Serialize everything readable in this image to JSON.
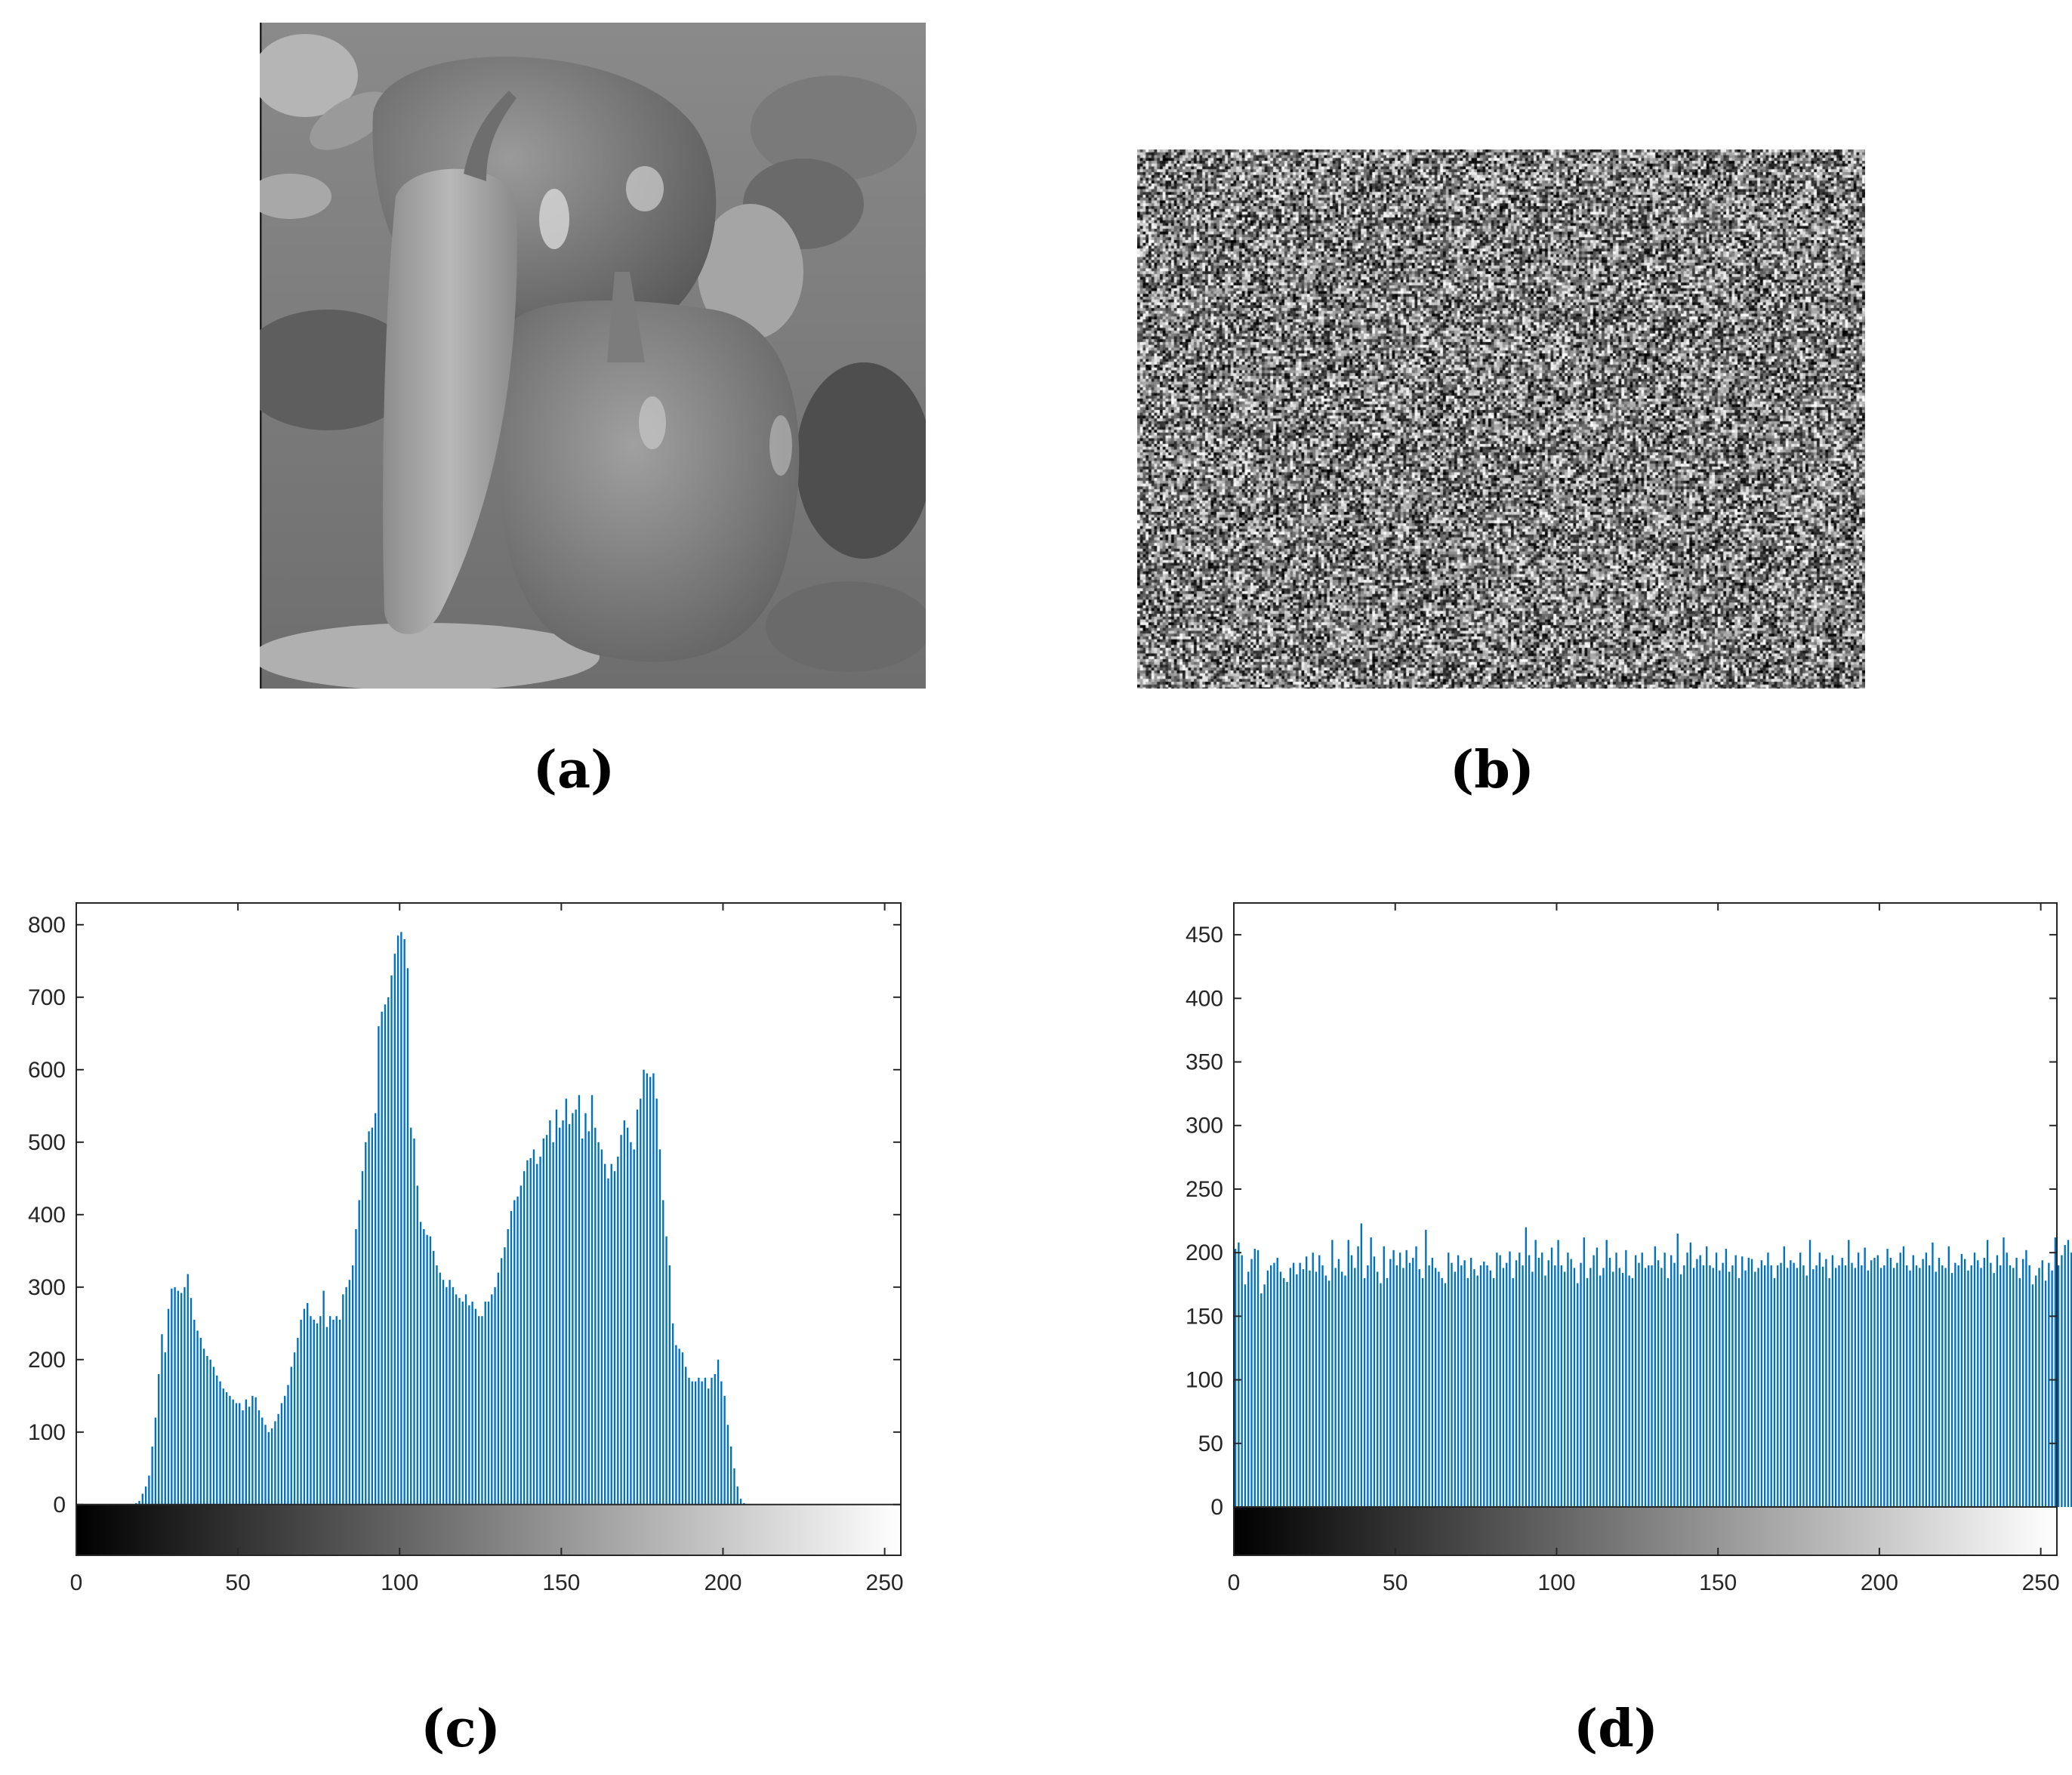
{
  "captions": {
    "a": "(a)",
    "b": "(b)",
    "c": "(c)",
    "d": "(d)"
  },
  "images": {
    "a": {
      "description_name": "peppers-grayscale-image"
    },
    "b": {
      "description_name": "encrypted-noise-image"
    }
  },
  "colors": {
    "bar": "#0072BD",
    "axis": "#262626",
    "background": "#ffffff"
  },
  "chart_data": [
    {
      "type": "bar",
      "panel": "c",
      "title": "",
      "xlabel": "",
      "ylabel": "",
      "xlim": [
        0,
        255
      ],
      "ylim": [
        -70,
        830
      ],
      "xticks": [
        0,
        50,
        100,
        150,
        200,
        250
      ],
      "yticks": [
        0,
        100,
        200,
        300,
        400,
        500,
        600,
        700,
        800
      ],
      "colorbar": "grayscale 0-255 gradient below axis",
      "grid": false,
      "x_start": 0,
      "values": [
        0,
        0,
        0,
        0,
        0,
        0,
        0,
        0,
        0,
        0,
        0,
        0,
        0,
        0,
        0,
        0,
        0,
        0,
        2,
        5,
        15,
        25,
        40,
        80,
        120,
        180,
        235,
        210,
        270,
        298,
        300,
        295,
        292,
        300,
        318,
        285,
        255,
        240,
        230,
        215,
        205,
        200,
        190,
        178,
        170,
        160,
        155,
        150,
        145,
        140,
        140,
        130,
        145,
        135,
        150,
        148,
        130,
        120,
        110,
        100,
        105,
        115,
        125,
        140,
        150,
        165,
        190,
        210,
        230,
        255,
        270,
        278,
        260,
        255,
        250,
        260,
        295,
        245,
        260,
        255,
        260,
        255,
        290,
        300,
        310,
        330,
        380,
        420,
        460,
        500,
        515,
        520,
        540,
        660,
        680,
        690,
        700,
        730,
        760,
        785,
        790,
        780,
        740,
        520,
        505,
        440,
        390,
        380,
        372,
        370,
        350,
        330,
        320,
        310,
        300,
        310,
        300,
        290,
        285,
        280,
        290,
        275,
        280,
        270,
        260,
        260,
        280,
        280,
        290,
        300,
        320,
        340,
        355,
        380,
        405,
        420,
        425,
        440,
        460,
        475,
        478,
        490,
        470,
        480,
        505,
        510,
        530,
        500,
        545,
        520,
        530,
        560,
        525,
        540,
        545,
        565,
        505,
        540,
        515,
        565,
        520,
        500,
        490,
        470,
        450,
        470,
        460,
        480,
        510,
        530,
        520,
        500,
        490,
        545,
        560,
        600,
        595,
        590,
        595,
        560,
        490,
        420,
        370,
        330,
        250,
        220,
        215,
        210,
        190,
        175,
        170,
        170,
        175,
        170,
        175,
        160,
        175,
        180,
        200,
        170,
        150,
        110,
        80,
        50,
        25,
        8,
        2,
        0,
        0,
        0,
        0,
        0,
        0,
        0,
        0,
        0,
        0,
        0,
        0,
        0,
        0,
        0,
        0,
        0,
        0,
        0,
        0,
        0,
        0,
        0,
        0,
        0,
        0,
        0,
        0,
        0,
        0,
        0,
        0,
        0,
        0,
        0,
        0,
        0,
        0,
        0,
        0,
        0,
        0,
        0,
        0,
        0,
        0,
        0,
        0,
        0,
        0
      ]
    },
    {
      "type": "bar",
      "panel": "d",
      "title": "",
      "xlabel": "",
      "ylabel": "",
      "xlim": [
        0,
        255
      ],
      "ylim": [
        -38,
        475
      ],
      "xticks": [
        0,
        50,
        100,
        150,
        200,
        250
      ],
      "yticks": [
        0,
        50,
        100,
        150,
        200,
        250,
        300,
        350,
        400,
        450
      ],
      "colorbar": "grayscale 0-255 gradient below axis",
      "grid": false,
      "x_start": 0,
      "values": [
        203,
        208,
        198,
        175,
        185,
        195,
        203,
        202,
        168,
        175,
        186,
        190,
        192,
        196,
        185,
        180,
        177,
        188,
        192,
        183,
        192,
        187,
        197,
        186,
        200,
        185,
        198,
        190,
        182,
        178,
        210,
        188,
        195,
        185,
        182,
        210,
        198,
        188,
        205,
        223,
        180,
        190,
        212,
        197,
        185,
        176,
        205,
        180,
        195,
        202,
        190,
        200,
        188,
        202,
        192,
        196,
        205,
        187,
        180,
        218,
        190,
        196,
        188,
        185,
        180,
        176,
        200,
        192,
        185,
        198,
        190,
        194,
        180,
        196,
        187,
        182,
        190,
        193,
        190,
        186,
        180,
        200,
        198,
        188,
        192,
        201,
        180,
        194,
        200,
        190,
        220,
        198,
        185,
        210,
        196,
        200,
        182,
        194,
        204,
        190,
        210,
        190,
        185,
        200,
        195,
        188,
        176,
        192,
        212,
        180,
        188,
        198,
        204,
        182,
        188,
        210,
        196,
        185,
        200,
        188,
        184,
        202,
        182,
        180,
        198,
        192,
        200,
        188,
        190,
        190,
        205,
        194,
        188,
        200,
        180,
        198,
        192,
        215,
        183,
        190,
        200,
        208,
        188,
        195,
        198,
        190,
        205,
        190,
        188,
        200,
        186,
        192,
        203,
        185,
        190,
        198,
        180,
        197,
        186,
        196,
        195,
        185,
        188,
        194,
        190,
        200,
        190,
        180,
        190,
        192,
        205,
        188,
        194,
        192,
        188,
        200,
        190,
        182,
        210,
        187,
        190,
        200,
        189,
        195,
        180,
        198,
        188,
        190,
        196,
        190,
        210,
        192,
        188,
        200,
        190,
        204,
        186,
        194,
        196,
        198,
        188,
        190,
        203,
        196,
        188,
        192,
        200,
        205,
        190,
        186,
        198,
        190,
        188,
        195,
        200,
        190,
        208,
        185,
        196,
        190,
        188,
        205,
        184,
        192,
        190,
        199,
        195,
        186,
        190,
        200,
        194,
        188,
        196,
        210,
        192,
        184,
        198,
        190,
        212,
        200,
        190,
        188,
        196,
        180,
        195,
        202,
        190,
        175,
        182,
        188,
        194,
        178,
        192,
        186,
        212,
        190,
        198,
        206,
        210,
        200
      ]
    }
  ]
}
